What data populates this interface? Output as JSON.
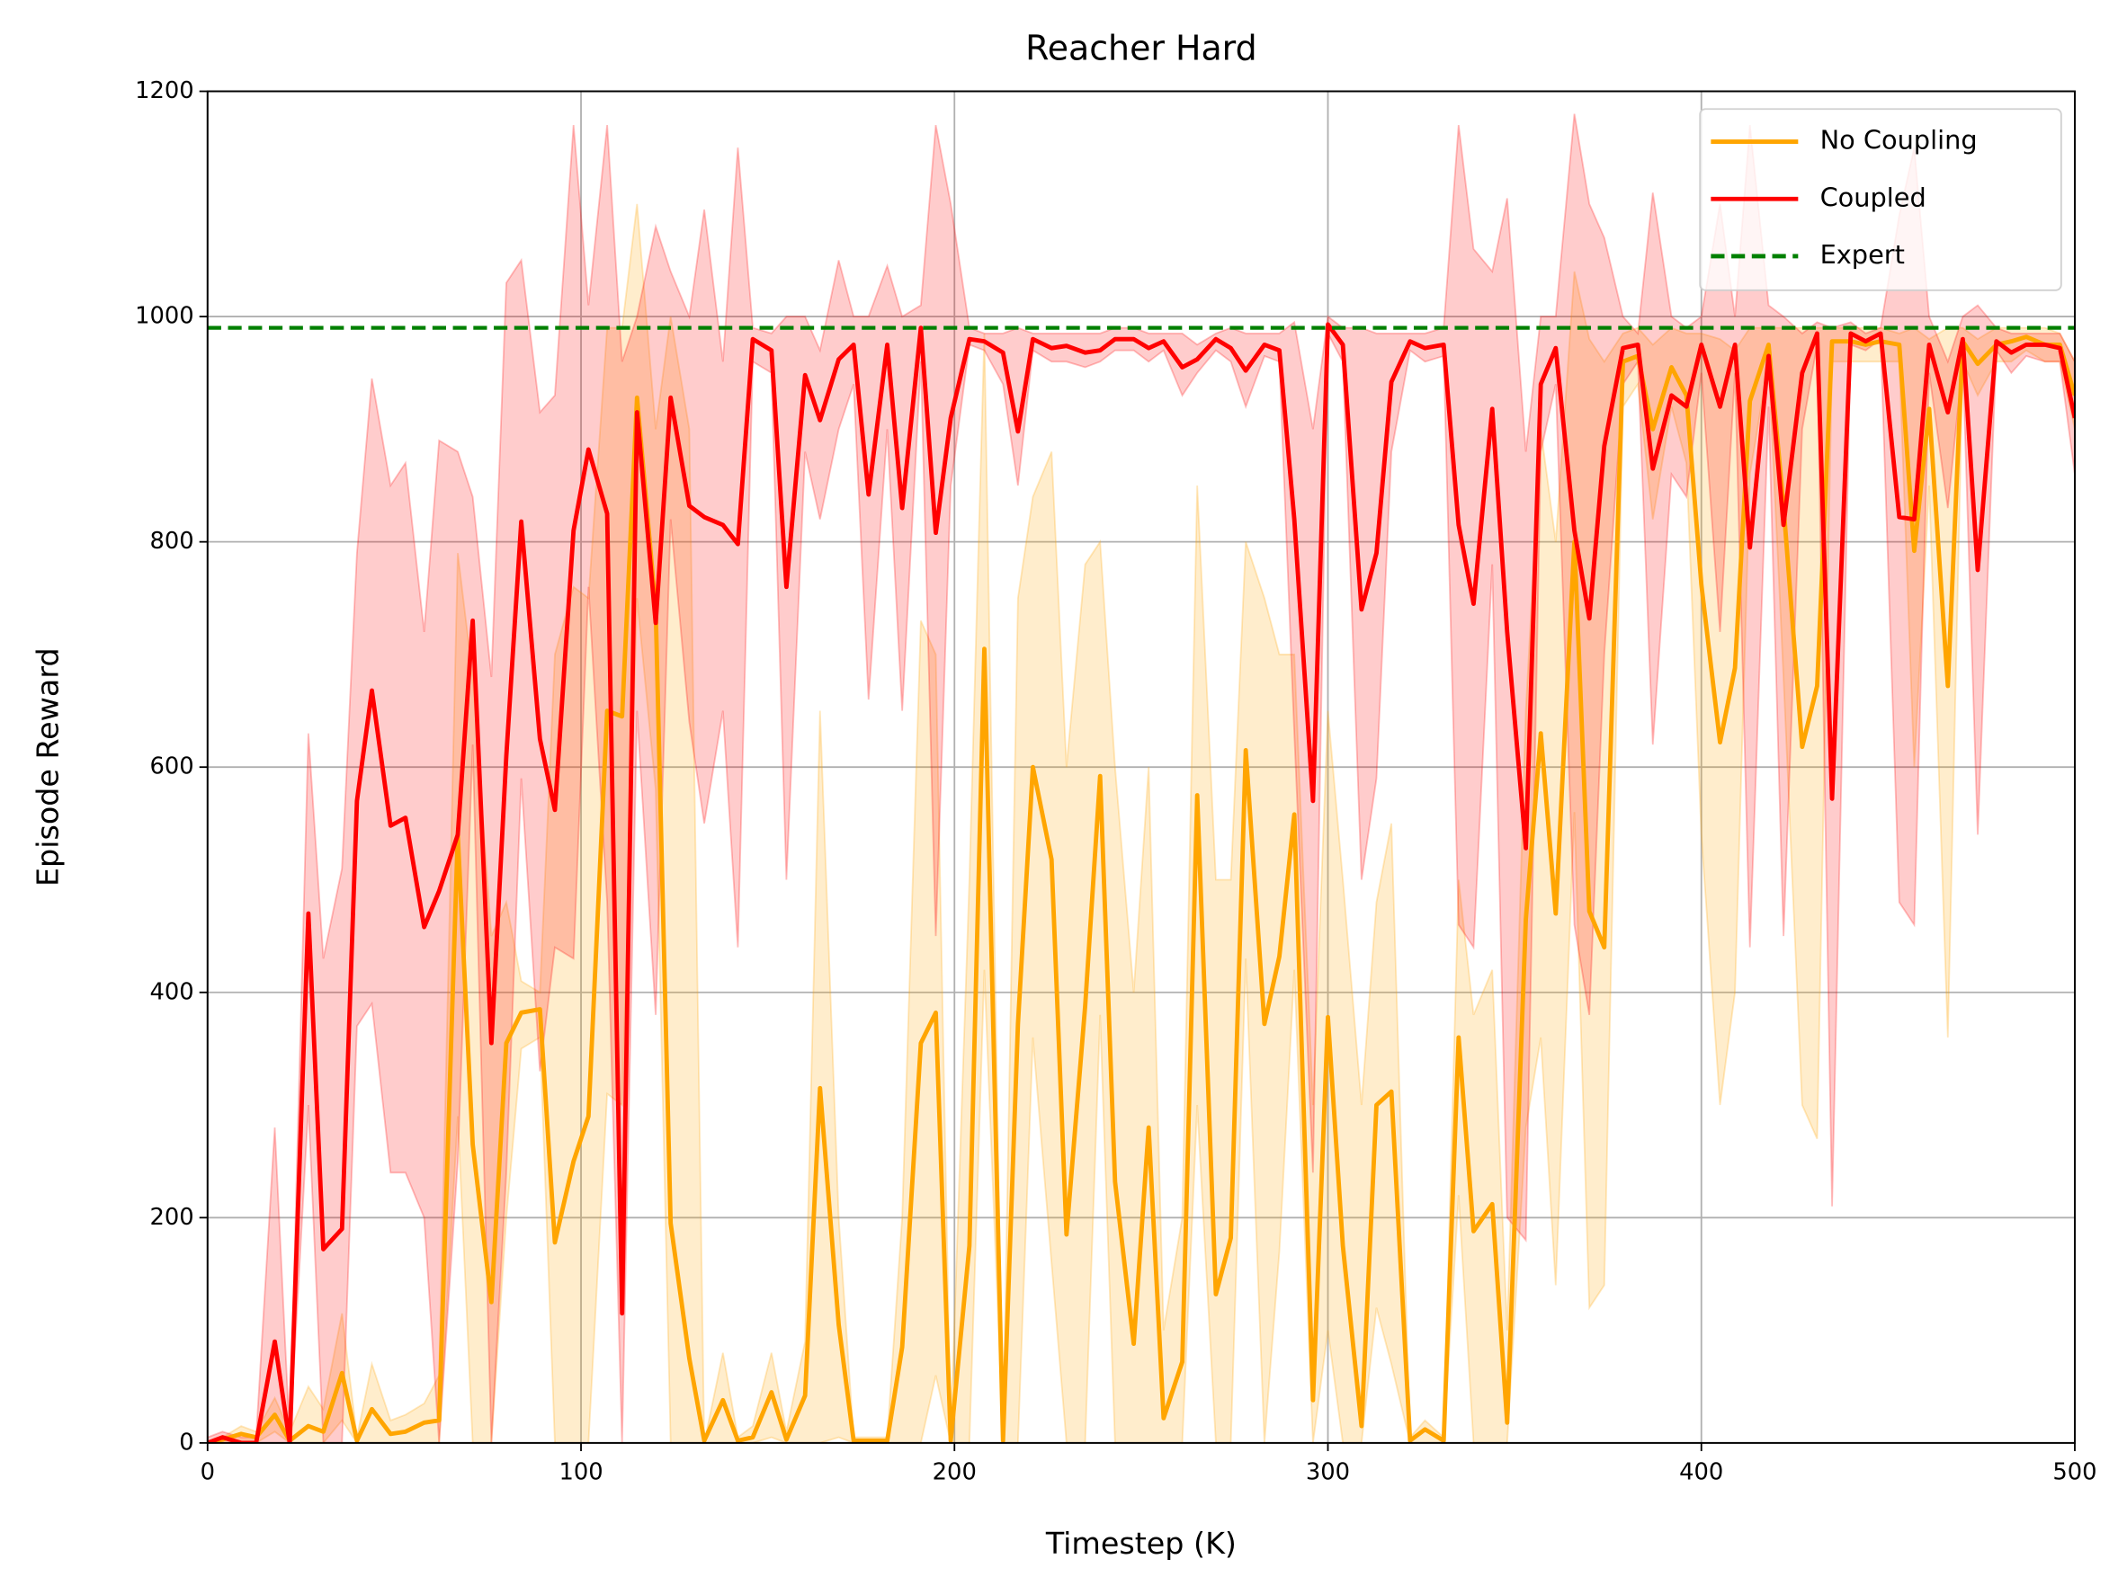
{
  "chart_data": {
    "type": "line",
    "title": "Reacher Hard",
    "xlabel": "Timestep (K)",
    "ylabel": "Episode Reward",
    "xlim": [
      0,
      500
    ],
    "ylim": [
      0,
      1200
    ],
    "xticks": [
      0,
      100,
      200,
      300,
      400,
      500
    ],
    "yticks": [
      0,
      200,
      400,
      600,
      800,
      1000,
      1200
    ],
    "grid": true,
    "legend": "upper right",
    "x": [
      0,
      4,
      9,
      13,
      18,
      22,
      27,
      31,
      36,
      40,
      44,
      49,
      53,
      58,
      62,
      67,
      71,
      76,
      80,
      84,
      89,
      93,
      98,
      102,
      107,
      111,
      115,
      120,
      124,
      129,
      133,
      138,
      142,
      146,
      151,
      155,
      160,
      164,
      169,
      173,
      177,
      182,
      186,
      191,
      195,
      199,
      204,
      208,
      213,
      217,
      221,
      226,
      230,
      235,
      239,
      243,
      248,
      252,
      256,
      261,
      265,
      270,
      274,
      278,
      283,
      287,
      291,
      296,
      300,
      304,
      309,
      313,
      317,
      322,
      326,
      331,
      335,
      339,
      344,
      348,
      353,
      357,
      361,
      366,
      370,
      374,
      379,
      383,
      387,
      392,
      396,
      400,
      405,
      409,
      413,
      418,
      422,
      427,
      431,
      435,
      440,
      444,
      448,
      453,
      457,
      461,
      466,
      470,
      474,
      479,
      483,
      487,
      492,
      496,
      500
    ],
    "series": [
      {
        "name": "No Coupling",
        "color": "#ffa500",
        "values": [
          0,
          3,
          8,
          5,
          25,
          2,
          15,
          10,
          62,
          2,
          30,
          8,
          10,
          18,
          20,
          540,
          265,
          125,
          355,
          382,
          385,
          178,
          250,
          290,
          650,
          645,
          928,
          740,
          195,
          75,
          2,
          38,
          2,
          5,
          45,
          3,
          42,
          315,
          105,
          2,
          2,
          2,
          85,
          355,
          382,
          2,
          175,
          705,
          2,
          372,
          600,
          518,
          185,
          388,
          592,
          232,
          88,
          280,
          22,
          72,
          575,
          132,
          182,
          615,
          372,
          432,
          558,
          38,
          378,
          175,
          15,
          300,
          312,
          2,
          12,
          2,
          360,
          188,
          212,
          18,
          465,
          630,
          470,
          800,
          472,
          440,
          960,
          965,
          900,
          955,
          930,
          762,
          622,
          688,
          925,
          975,
          832,
          618,
          672,
          978,
          978,
          975,
          978,
          975,
          792,
          918,
          672,
          978,
          958,
          975,
          978,
          982,
          975,
          975,
          930
        ],
        "upper": [
          0,
          5,
          15,
          10,
          40,
          10,
          50,
          30,
          115,
          5,
          70,
          20,
          25,
          35,
          60,
          790,
          680,
          450,
          480,
          410,
          400,
          700,
          760,
          750,
          990,
          990,
          1100,
          900,
          1000,
          900,
          0,
          80,
          5,
          15,
          80,
          10,
          90,
          650,
          200,
          5,
          5,
          5,
          200,
          730,
          700,
          10,
          500,
          985,
          5,
          750,
          840,
          880,
          600,
          780,
          800,
          600,
          400,
          600,
          100,
          200,
          850,
          500,
          500,
          800,
          750,
          700,
          700,
          300,
          650,
          500,
          300,
          480,
          550,
          5,
          20,
          5,
          500,
          380,
          420,
          100,
          650,
          900,
          800,
          1040,
          980,
          960,
          985,
          990,
          975,
          990,
          985,
          985,
          980,
          970,
          990,
          990,
          990,
          990,
          990,
          990,
          990,
          990,
          990,
          985,
          990,
          980,
          990,
          990,
          980,
          990,
          990,
          990,
          990,
          985,
          960
        ],
        "lower": [
          0,
          0,
          0,
          0,
          10,
          0,
          0,
          0,
          20,
          0,
          0,
          0,
          0,
          0,
          0,
          290,
          0,
          0,
          200,
          350,
          360,
          0,
          0,
          0,
          310,
          300,
          750,
          580,
          0,
          0,
          0,
          0,
          0,
          0,
          5,
          0,
          0,
          0,
          5,
          0,
          0,
          0,
          0,
          0,
          60,
          0,
          0,
          420,
          0,
          0,
          360,
          160,
          0,
          0,
          380,
          0,
          0,
          0,
          0,
          0,
          300,
          0,
          0,
          430,
          0,
          170,
          420,
          0,
          100,
          0,
          0,
          120,
          70,
          0,
          0,
          0,
          220,
          0,
          0,
          0,
          280,
          360,
          140,
          560,
          120,
          140,
          920,
          940,
          820,
          920,
          870,
          540,
          300,
          400,
          860,
          960,
          680,
          300,
          270,
          960,
          960,
          960,
          960,
          960,
          600,
          850,
          360,
          960,
          930,
          960,
          960,
          970,
          960,
          960,
          900
        ]
      },
      {
        "name": "Coupled",
        "color": "#ff0000",
        "values": [
          0,
          5,
          0,
          0,
          90,
          0,
          470,
          172,
          190,
          570,
          668,
          548,
          555,
          458,
          490,
          540,
          730,
          355,
          610,
          818,
          625,
          562,
          810,
          882,
          825,
          115,
          915,
          728,
          928,
          832,
          822,
          815,
          798,
          980,
          970,
          760,
          948,
          908,
          962,
          975,
          842,
          975,
          830,
          990,
          808,
          910,
          980,
          978,
          968,
          898,
          980,
          972,
          974,
          968,
          970,
          980,
          980,
          972,
          978,
          955,
          962,
          980,
          972,
          952,
          975,
          970,
          820,
          570,
          993,
          975,
          740,
          790,
          942,
          978,
          972,
          975,
          815,
          745,
          918,
          720,
          528,
          940,
          972,
          810,
          732,
          885,
          972,
          975,
          865,
          930,
          920,
          975,
          920,
          975,
          795,
          965,
          815,
          950,
          985,
          572,
          985,
          978,
          985,
          822,
          820,
          975,
          915,
          980,
          775,
          978,
          968,
          975,
          975,
          972,
          910
        ],
        "upper": [
          5,
          10,
          5,
          5,
          280,
          5,
          630,
          430,
          510,
          790,
          945,
          850,
          870,
          720,
          890,
          880,
          840,
          680,
          1030,
          1050,
          915,
          930,
          1170,
          1010,
          1170,
          960,
          1000,
          1080,
          1040,
          1000,
          1095,
          960,
          1150,
          990,
          985,
          1000,
          1000,
          970,
          1050,
          1000,
          1000,
          1045,
          1000,
          1010,
          1170,
          1100,
          990,
          985,
          985,
          990,
          985,
          985,
          985,
          985,
          985,
          990,
          990,
          985,
          985,
          985,
          975,
          985,
          990,
          985,
          985,
          985,
          995,
          900,
          1000,
          990,
          990,
          985,
          985,
          985,
          985,
          990,
          1170,
          1060,
          1040,
          1105,
          880,
          1000,
          1000,
          1180,
          1100,
          1070,
          1000,
          985,
          1110,
          1000,
          990,
          1000,
          1100,
          1000,
          1170,
          1010,
          1000,
          985,
          995,
          990,
          995,
          985,
          990,
          1090,
          1150,
          1000,
          960,
          1000,
          1010,
          990,
          985,
          985,
          985,
          985,
          960
        ],
        "lower": [
          0,
          0,
          0,
          0,
          0,
          0,
          300,
          0,
          0,
          370,
          390,
          240,
          240,
          200,
          0,
          250,
          620,
          0,
          240,
          590,
          330,
          440,
          430,
          760,
          480,
          0,
          650,
          380,
          820,
          640,
          550,
          650,
          440,
          960,
          950,
          500,
          880,
          820,
          900,
          940,
          660,
          900,
          650,
          960,
          450,
          850,
          975,
          970,
          940,
          850,
          970,
          960,
          960,
          955,
          960,
          970,
          970,
          960,
          970,
          930,
          950,
          970,
          960,
          920,
          965,
          960,
          630,
          240,
          985,
          960,
          500,
          590,
          880,
          970,
          960,
          965,
          460,
          440,
          780,
          200,
          180,
          880,
          940,
          460,
          380,
          700,
          940,
          960,
          620,
          860,
          840,
          950,
          720,
          950,
          440,
          920,
          450,
          900,
          975,
          210,
          975,
          970,
          980,
          480,
          460,
          950,
          830,
          960,
          540,
          970,
          950,
          965,
          960,
          960,
          860
        ]
      }
    ],
    "reference_lines": [
      {
        "name": "Expert",
        "value": 990,
        "color": "#008000",
        "style": "dashed"
      }
    ]
  }
}
